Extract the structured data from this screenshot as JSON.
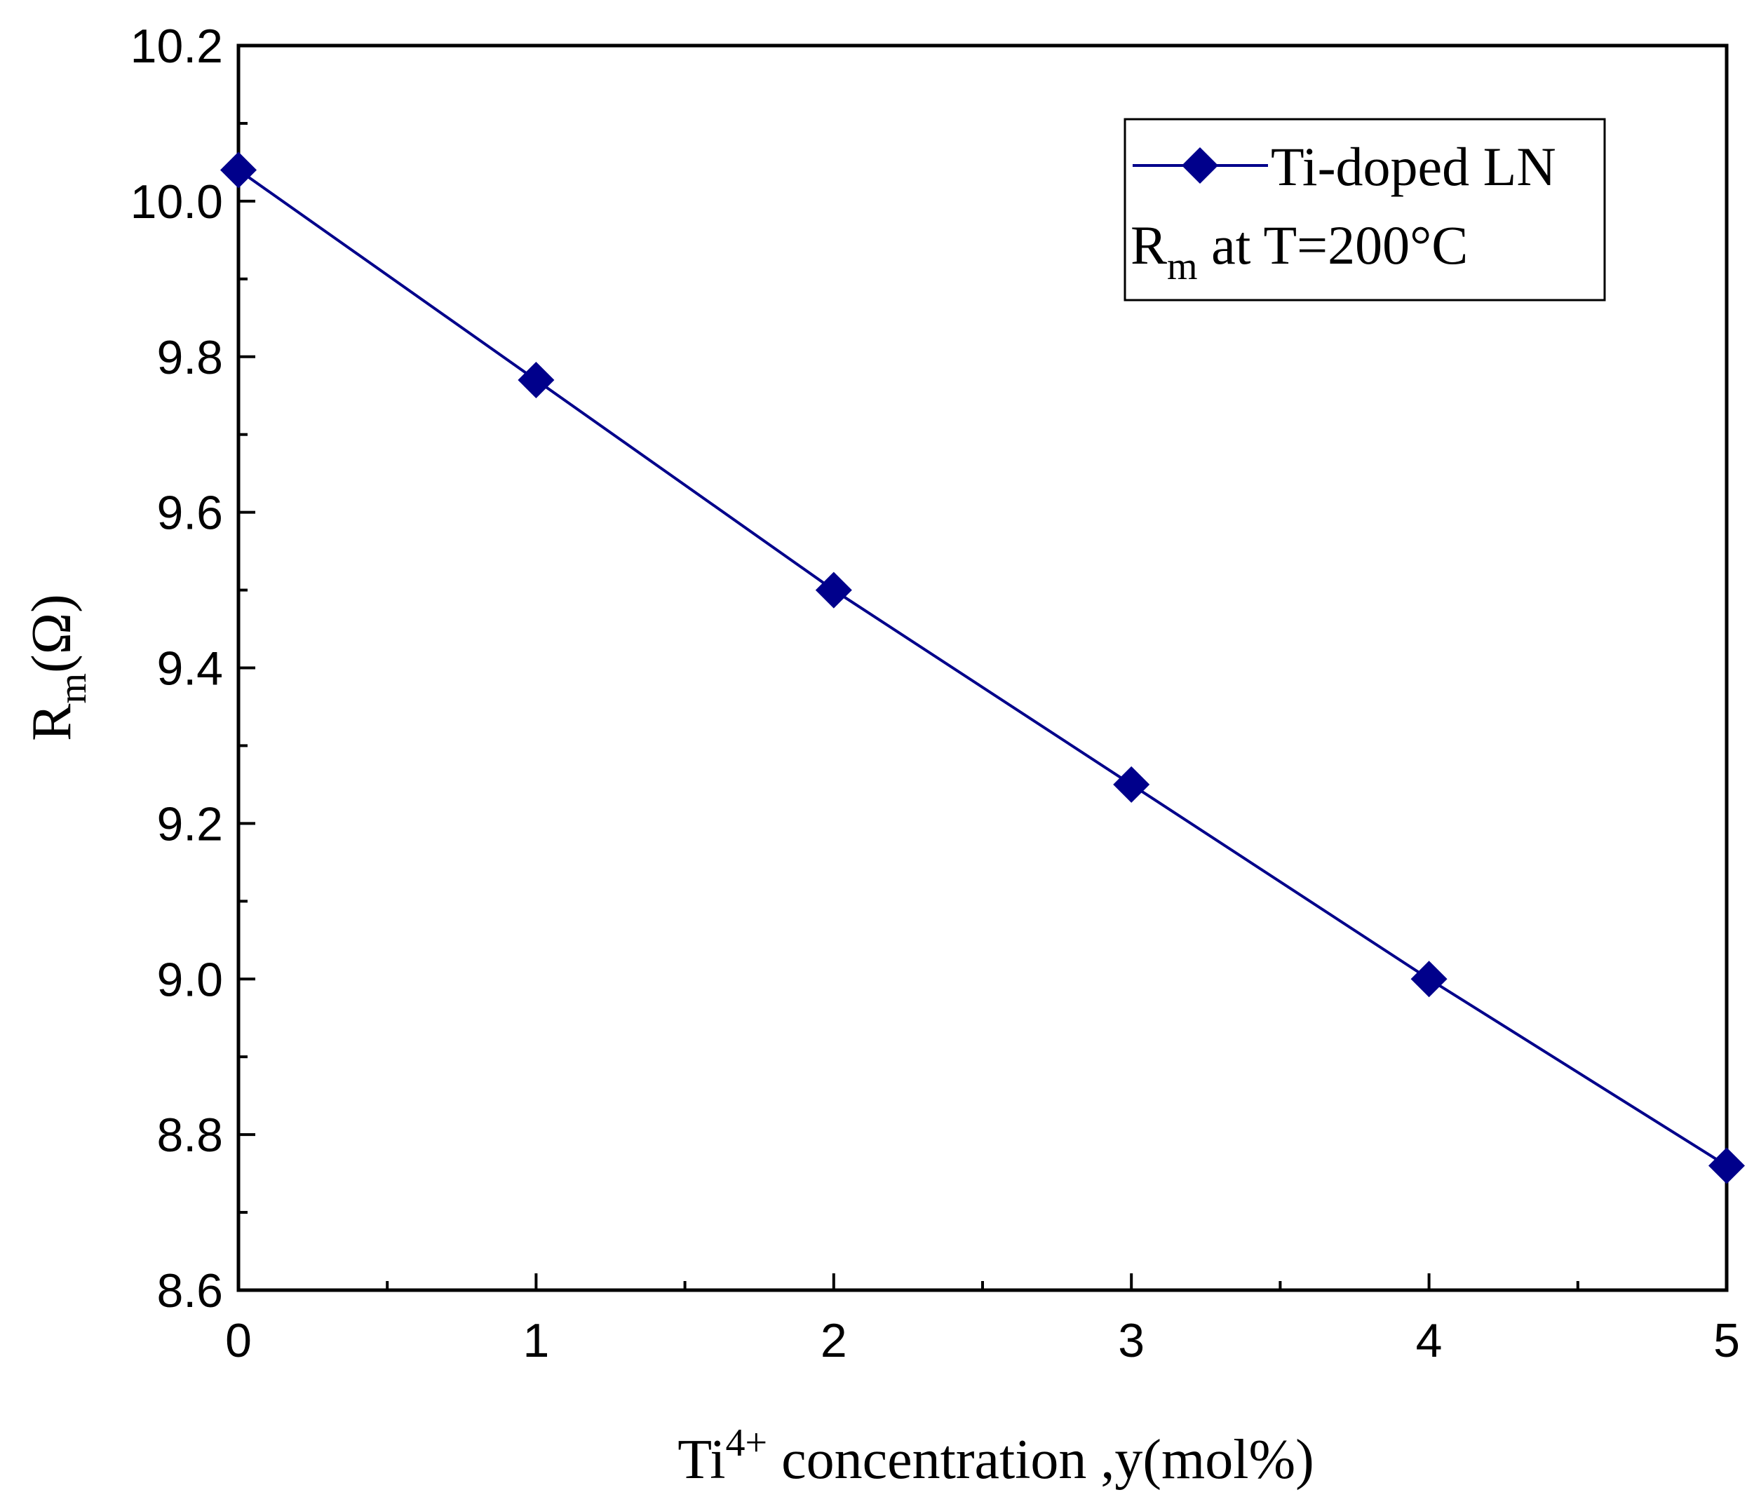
{
  "chart_data": {
    "type": "line",
    "title": "",
    "xlabel": {
      "base": "Ti",
      "sup": "4+",
      "rest": " concentration ,y(mol%)"
    },
    "ylabel": {
      "base": "R",
      "sub": "m",
      "rest": "(Ω)"
    },
    "xlim": [
      0,
      5
    ],
    "ylim": [
      8.6,
      10.2
    ],
    "xticks": [
      0,
      1,
      2,
      3,
      4,
      5
    ],
    "xtick_labels": [
      "0",
      "1",
      "2",
      "3",
      "4",
      "5"
    ],
    "yticks": [
      8.6,
      8.8,
      9.0,
      9.2,
      9.4,
      9.6,
      9.8,
      10.0,
      10.2
    ],
    "ytick_labels": [
      "8.6",
      "8.8",
      "9.0",
      "9.2",
      "9.4",
      "9.6",
      "9.8",
      "10.0",
      "10.2"
    ],
    "series": [
      {
        "name": "Ti-doped LN",
        "color": "#00008B",
        "marker": "diamond",
        "x": [
          0,
          1,
          2,
          3,
          4,
          5
        ],
        "y": [
          10.04,
          9.77,
          9.5,
          9.25,
          9.0,
          8.76
        ]
      }
    ],
    "legend": {
      "position": "top-right",
      "entry": "Ti-doped LN",
      "note": {
        "base": "R",
        "sub": "m",
        "rest": " at T=200°C"
      }
    },
    "grid": false
  }
}
